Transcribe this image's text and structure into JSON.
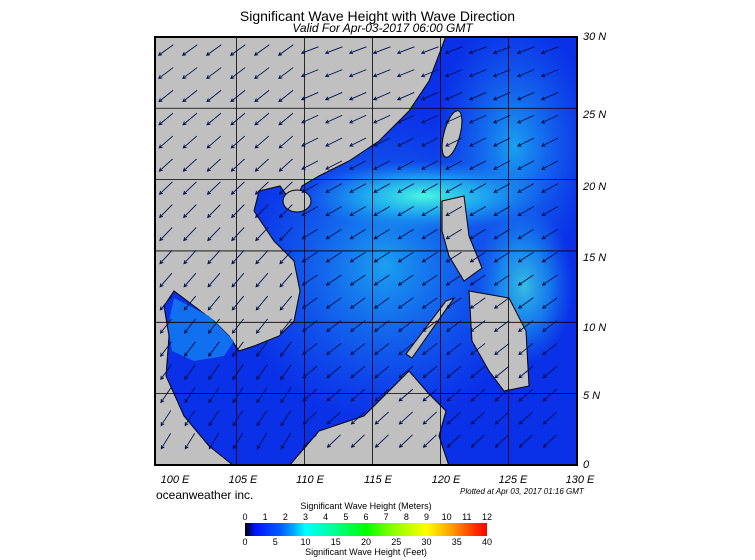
{
  "title": "Significant Wave Height with Wave Direction",
  "subtitle": "Valid For Apr-03-2017 06:00 GMT",
  "lat_labels": [
    "30 N",
    "25 N",
    "20 N",
    "15 N",
    "10 N",
    "5 N",
    "0"
  ],
  "lon_labels": [
    "100 E",
    "105 E",
    "110 E",
    "115 E",
    "120 E",
    "125 E",
    "130 E"
  ],
  "brand": "oceanweather inc.",
  "plotted": "Plotted at Apr 03, 2017 01:16 GMT",
  "colorbar": {
    "meters_title": "Significant Wave Height (Meters)",
    "meters": [
      "0",
      "1",
      "2",
      "3",
      "4",
      "5",
      "6",
      "7",
      "8",
      "9",
      "10",
      "11",
      "12"
    ],
    "feet": [
      "0",
      "5",
      "10",
      "15",
      "20",
      "25",
      "30",
      "35",
      "40"
    ],
    "feet_title": "Significant Wave Height (Feet)"
  },
  "colors": {
    "land": "#c0c0c0",
    "ocean_low": "#0a30e8",
    "ocean_mid": "#1890f0",
    "ocean_high": "#40f0e0"
  }
}
